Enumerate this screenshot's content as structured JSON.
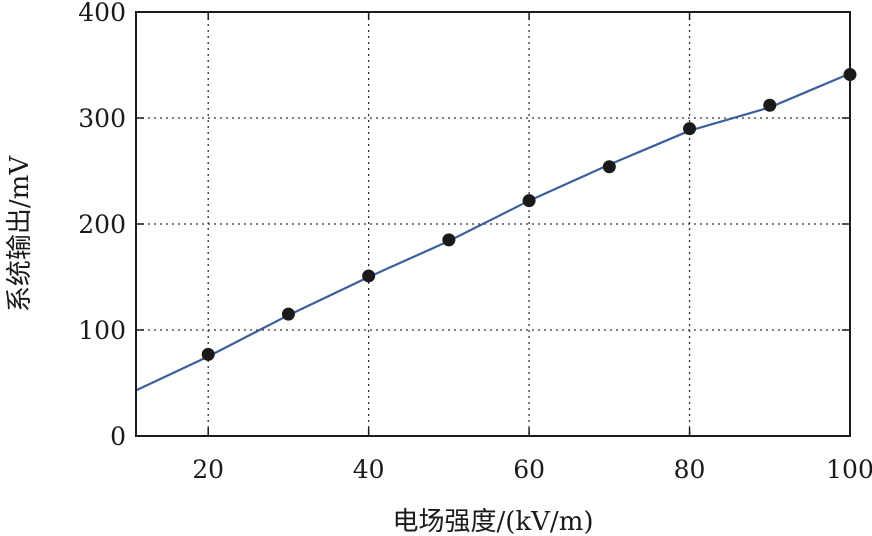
{
  "chart_data": {
    "type": "scatter",
    "title": "",
    "xlabel": "电场强度/(kV/m)",
    "ylabel": "系统输出/mV",
    "xlim": [
      11,
      100
    ],
    "ylim": [
      0,
      400
    ],
    "x_ticks": [
      20,
      40,
      60,
      80,
      100
    ],
    "y_ticks": [
      0,
      100,
      200,
      300,
      400
    ],
    "grid": true,
    "legend": "none",
    "series": [
      {
        "kind": "scatter",
        "x": [
          20,
          30,
          40,
          50,
          60,
          70,
          80,
          90,
          100
        ],
        "y": [
          77,
          115,
          151,
          185,
          222,
          254,
          290,
          312,
          341
        ]
      },
      {
        "kind": "line",
        "x": [
          11,
          20,
          30,
          40,
          50,
          60,
          70,
          80,
          90,
          100
        ],
        "y": [
          43,
          75,
          114,
          150,
          184,
          222,
          256,
          288,
          310,
          342
        ]
      }
    ],
    "colors": {
      "points": "#1a1a1a",
      "line": "#3b5f9a",
      "axis": "#1a1a1a",
      "grid": "#333333"
    }
  }
}
